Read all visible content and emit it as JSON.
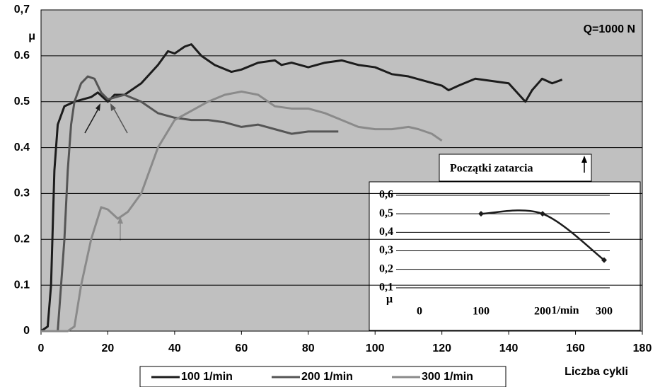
{
  "chart_data": [
    {
      "type": "line",
      "y_label": "μ",
      "x_label": "Liczba cykli",
      "annotations": [
        "Q=1000  N",
        "Początki zatarcia"
      ],
      "xlim": [
        0,
        180
      ],
      "xticks": [
        0,
        20,
        40,
        60,
        80,
        100,
        120,
        140,
        160,
        180
      ],
      "ylim": [
        0,
        0.7
      ],
      "yticks": [
        0,
        0.1,
        0.2,
        0.3,
        0.4,
        0.5,
        0.6,
        {
          "value": 0.7,
          "label": "0,7"
        }
      ],
      "grid": true,
      "background": "#c0c0c0",
      "legend": "bottom",
      "series": [
        {
          "name": "100 1/min",
          "color": "#1c1c1c",
          "x": [
            0,
            2,
            3,
            4,
            5,
            7,
            10,
            15,
            17,
            20,
            22,
            25,
            30,
            35,
            38,
            40,
            43,
            45,
            48,
            52,
            57,
            60,
            65,
            70,
            72,
            75,
            80,
            85,
            90,
            95,
            100,
            105,
            110,
            115,
            120,
            122,
            125,
            130,
            135,
            140,
            145,
            147,
            150,
            153,
            156
          ],
          "values": [
            0,
            0.01,
            0.1,
            0.35,
            0.45,
            0.49,
            0.5,
            0.51,
            0.52,
            0.5,
            0.515,
            0.515,
            0.54,
            0.58,
            0.61,
            0.605,
            0.62,
            0.625,
            0.6,
            0.58,
            0.565,
            0.57,
            0.585,
            0.59,
            0.58,
            0.585,
            0.575,
            0.585,
            0.59,
            0.58,
            0.575,
            0.56,
            0.555,
            0.545,
            0.535,
            0.525,
            0.535,
            0.55,
            0.545,
            0.54,
            0.5,
            0.525,
            0.55,
            0.54,
            0.548
          ]
        },
        {
          "name": "200 1/min",
          "color": "#555555",
          "x": [
            0,
            5,
            7,
            8,
            9,
            10,
            12,
            14,
            16,
            18,
            20,
            25,
            30,
            35,
            40,
            45,
            50,
            55,
            60,
            65,
            70,
            75,
            80,
            85,
            89
          ],
          "values": [
            0,
            0,
            0.2,
            0.35,
            0.45,
            0.5,
            0.54,
            0.555,
            0.55,
            0.52,
            0.505,
            0.515,
            0.5,
            0.475,
            0.465,
            0.46,
            0.46,
            0.455,
            0.445,
            0.45,
            0.44,
            0.43,
            0.435,
            0.435,
            0.435
          ]
        },
        {
          "name": "300 1/min",
          "color": "#8a8a8a",
          "x": [
            0,
            8,
            10,
            12,
            15,
            18,
            20,
            23,
            26,
            30,
            35,
            40,
            45,
            50,
            55,
            60,
            65,
            70,
            75,
            80,
            85,
            90,
            95,
            100,
            105,
            110,
            113,
            117,
            120
          ],
          "values": [
            0,
            0,
            0.01,
            0.1,
            0.2,
            0.27,
            0.265,
            0.245,
            0.26,
            0.3,
            0.4,
            0.46,
            0.48,
            0.5,
            0.515,
            0.522,
            0.515,
            0.49,
            0.485,
            0.485,
            0.475,
            0.46,
            0.445,
            0.44,
            0.44,
            0.445,
            0.44,
            0.43,
            0.415
          ]
        }
      ]
    },
    {
      "type": "line",
      "y_label": "μ",
      "x_unit": "1/min",
      "xlim": [
        0,
        300
      ],
      "xticks": [
        0,
        100,
        200,
        300
      ],
      "ylim": [
        0,
        0.6
      ],
      "yticks": [
        {
          "value": 0.1,
          "label": "0,1"
        },
        {
          "value": 0.2,
          "label": "0,2"
        },
        {
          "value": 0.3,
          "label": "0,3"
        },
        {
          "value": 0.4,
          "label": "0,4"
        },
        {
          "value": 0.5,
          "label": "0,5"
        },
        {
          "value": 0.6,
          "label": "0,6"
        }
      ],
      "grid": true,
      "series": [
        {
          "color": "#1c1c1c",
          "x": [
            100,
            200,
            300
          ],
          "values": [
            0.5,
            0.5,
            0.25
          ]
        }
      ]
    }
  ]
}
